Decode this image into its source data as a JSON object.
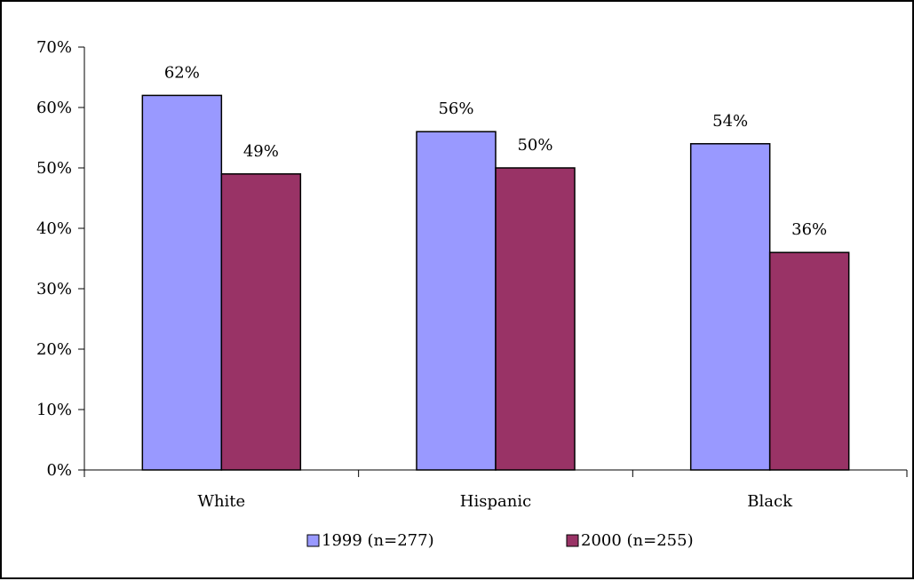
{
  "chart_data": {
    "type": "bar",
    "title": "",
    "xlabel": "",
    "ylabel": "",
    "categories": [
      "White",
      "Hispanic",
      "Black"
    ],
    "series": [
      {
        "name": "1999 (n=277)",
        "color": "#9999ff",
        "values": [
          62,
          56,
          54
        ]
      },
      {
        "name": "2000 (n=255)",
        "color": "#993366",
        "values": [
          49,
          50,
          36
        ]
      }
    ],
    "value_suffix": "%",
    "ylim": [
      0,
      70
    ],
    "yticks": [
      0,
      10,
      20,
      30,
      40,
      50,
      60,
      70
    ],
    "grid": false,
    "legend_position": "bottom"
  }
}
